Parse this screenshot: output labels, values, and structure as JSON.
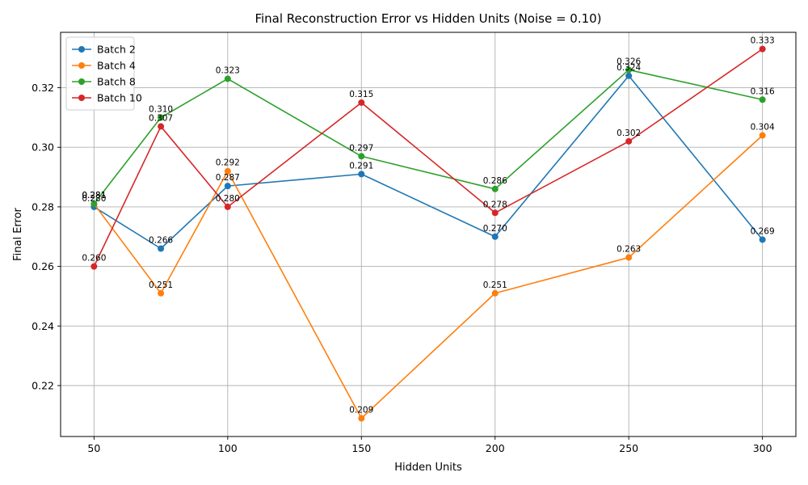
{
  "chart_data": {
    "type": "line",
    "title": "Final Reconstruction Error vs Hidden Units (Noise = 0.10)",
    "xlabel": "Hidden Units",
    "ylabel": "Final Error",
    "x": [
      50,
      75,
      100,
      150,
      200,
      250,
      300
    ],
    "xlim": [
      37.5,
      312.5
    ],
    "ylim": [
      0.2029,
      0.3386
    ],
    "xticks": [
      50,
      100,
      150,
      200,
      250,
      300
    ],
    "xtick_labels": [
      "50",
      "100",
      "150",
      "200",
      "250",
      "300"
    ],
    "yticks": [
      0.22,
      0.24,
      0.26,
      0.28,
      0.3,
      0.32
    ],
    "ytick_labels": [
      "0.22",
      "0.24",
      "0.26",
      "0.28",
      "0.30",
      "0.32"
    ],
    "grid": true,
    "legend_position": "top-left",
    "series": [
      {
        "name": "Batch 2",
        "color": "#1f77b4",
        "values": [
          0.28,
          0.266,
          0.287,
          0.291,
          0.27,
          0.324,
          0.269
        ],
        "labels": [
          "0.280",
          "0.266",
          "0.287",
          "0.291",
          "0.270",
          "0.324",
          "0.269"
        ]
      },
      {
        "name": "Batch 4",
        "color": "#ff7f0e",
        "values": [
          0.281,
          0.251,
          0.292,
          0.209,
          0.251,
          0.263,
          0.304
        ],
        "labels": [
          "0.281",
          "0.251",
          "0.292",
          "0.209",
          "0.251",
          "0.263",
          "0.304"
        ]
      },
      {
        "name": "Batch 8",
        "color": "#2ca02c",
        "values": [
          0.281,
          0.31,
          0.323,
          0.297,
          0.286,
          0.326,
          0.316
        ],
        "labels": [
          "0.281",
          "0.310",
          "0.323",
          "0.297",
          "0.286",
          "0.326",
          "0.316"
        ]
      },
      {
        "name": "Batch 10",
        "color": "#d62728",
        "values": [
          0.26,
          0.307,
          0.28,
          0.315,
          0.278,
          0.302,
          0.333
        ],
        "labels": [
          "0.260",
          "0.307",
          "0.280",
          "0.315",
          "0.278",
          "0.302",
          "0.333"
        ]
      }
    ]
  }
}
